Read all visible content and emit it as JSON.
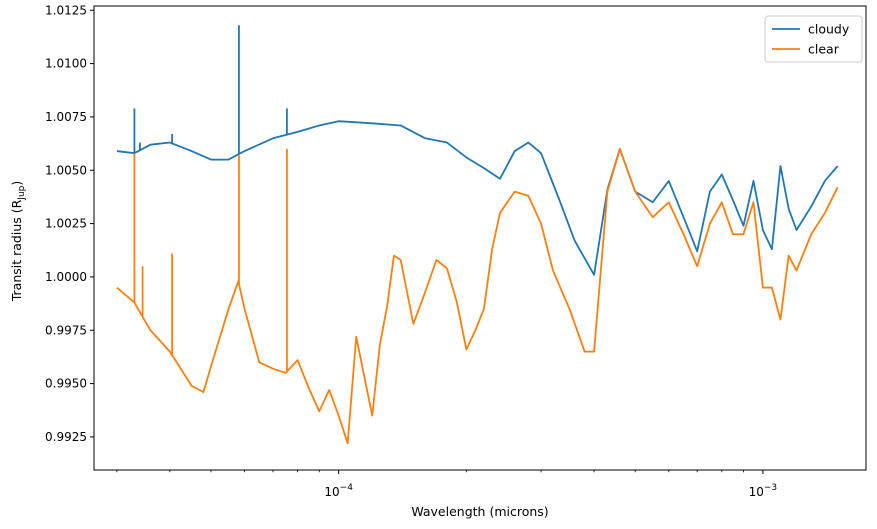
{
  "chart_data": {
    "type": "line",
    "title": "",
    "xlabel": "Wavelength (microns)",
    "ylabel": "Transit radius (R",
    "ylabel_sub": "Jup",
    "ylabel_close": ")",
    "xscale": "log",
    "xlim": [
      2.65e-05,
      0.00175
    ],
    "ylim": [
      0.99095,
      1.0127
    ],
    "x_ticks": [
      {
        "value": 0.0001,
        "mantissa": "10",
        "exp": "−4"
      },
      {
        "value": 0.001,
        "mantissa": "10",
        "exp": "−3"
      }
    ],
    "y_ticks": [
      {
        "value": 0.9925,
        "label": "0.9925"
      },
      {
        "value": 0.995,
        "label": "0.9950"
      },
      {
        "value": 0.9975,
        "label": "0.9975"
      },
      {
        "value": 1.0,
        "label": "1.0000"
      },
      {
        "value": 1.0025,
        "label": "1.0025"
      },
      {
        "value": 1.005,
        "label": "1.0050"
      },
      {
        "value": 1.0075,
        "label": "1.0075"
      },
      {
        "value": 1.01,
        "label": "1.0100"
      },
      {
        "value": 1.0125,
        "label": "1.0125"
      }
    ],
    "grid": false,
    "legend_position": "top-right",
    "series": [
      {
        "name": "cloudy",
        "color": "#1f77b4",
        "x": [
          3e-05,
          3.3e-05,
          3.6e-05,
          4e-05,
          4.5e-05,
          5e-05,
          5.5e-05,
          6e-05,
          7e-05,
          8e-05,
          9e-05,
          0.0001,
          0.00012,
          0.00014,
          0.00016,
          0.00018,
          0.0002,
          0.00022,
          0.00024,
          0.00026,
          0.00028,
          0.0003,
          0.00033,
          0.00036,
          0.0004,
          0.00043,
          0.00046,
          0.0005,
          0.00055,
          0.0006,
          0.00065,
          0.0007,
          0.00075,
          0.0008,
          0.00085,
          0.0009,
          0.00095,
          0.001,
          0.00105,
          0.0011,
          0.00115,
          0.0012,
          0.0013,
          0.0014,
          0.0015
        ],
        "y": [
          1.0059,
          1.0058,
          1.0062,
          1.0063,
          1.0059,
          1.0055,
          1.0055,
          1.0059,
          1.0065,
          1.0068,
          1.0071,
          1.0073,
          1.0072,
          1.0071,
          1.0065,
          1.0063,
          1.0056,
          1.0051,
          1.0046,
          1.0059,
          1.0063,
          1.0058,
          1.0037,
          1.0017,
          1.0001,
          1.0041,
          1.006,
          1.004,
          1.0035,
          1.0045,
          1.0028,
          1.0012,
          1.004,
          1.0048,
          1.0036,
          1.0024,
          1.0045,
          1.0022,
          1.0013,
          1.0052,
          1.0032,
          1.0022,
          1.0033,
          1.0045,
          1.0052
        ]
      },
      {
        "name": "clear",
        "color": "#ff7f0e",
        "x": [
          3e-05,
          3.3e-05,
          3.6e-05,
          4e-05,
          4.5e-05,
          4.8e-05,
          5e-05,
          5.5e-05,
          5.8e-05,
          6e-05,
          6.5e-05,
          7e-05,
          7.5e-05,
          8e-05,
          8.5e-05,
          9e-05,
          9.5e-05,
          0.0001,
          0.000105,
          0.00011,
          0.000115,
          0.00012,
          0.000125,
          0.00013,
          0.000135,
          0.00014,
          0.00015,
          0.00016,
          0.00017,
          0.00018,
          0.00019,
          0.0002,
          0.00021,
          0.00022,
          0.00023,
          0.00024,
          0.00026,
          0.00028,
          0.0003,
          0.00032,
          0.00035,
          0.00038,
          0.0004,
          0.00043,
          0.00046,
          0.0005,
          0.00055,
          0.0006,
          0.00065,
          0.0007,
          0.00075,
          0.0008,
          0.00085,
          0.0009,
          0.00095,
          0.001,
          0.00105,
          0.0011,
          0.00115,
          0.0012,
          0.0013,
          0.0014,
          0.0015
        ],
        "y": [
          0.9995,
          0.9988,
          0.9975,
          0.9965,
          0.9949,
          0.9946,
          0.9958,
          0.9985,
          0.9998,
          0.9985,
          0.996,
          0.9957,
          0.9955,
          0.9961,
          0.9948,
          0.9937,
          0.9947,
          0.9935,
          0.9922,
          0.9972,
          0.9953,
          0.9935,
          0.9968,
          0.9986,
          1.001,
          1.0008,
          0.9978,
          0.9993,
          1.0008,
          1.0004,
          0.9988,
          0.9966,
          0.9975,
          0.9985,
          1.0013,
          1.003,
          1.004,
          1.0038,
          1.0025,
          1.0003,
          0.9985,
          0.9965,
          0.9965,
          1.004,
          1.006,
          1.004,
          1.0028,
          1.0035,
          1.002,
          1.0005,
          1.0025,
          1.0035,
          1.002,
          1.002,
          1.0035,
          0.9995,
          0.9995,
          0.998,
          1.001,
          1.0003,
          1.002,
          1.003,
          1.0042
        ]
      }
    ],
    "spikes": [
      {
        "series": "cloudy",
        "x": 3.3e-05,
        "y": 1.0079
      },
      {
        "series": "cloudy",
        "x": 3.4e-05,
        "y": 1.0063
      },
      {
        "series": "cloudy",
        "x": 4.05e-05,
        "y": 1.0067
      },
      {
        "series": "cloudy",
        "x": 5.82e-05,
        "y": 1.0118
      },
      {
        "series": "cloudy",
        "x": 7.55e-05,
        "y": 1.0079
      },
      {
        "series": "clear",
        "x": 3.3e-05,
        "y": 1.0058
      },
      {
        "series": "clear",
        "x": 3.45e-05,
        "y": 1.0005
      },
      {
        "series": "clear",
        "x": 4.05e-05,
        "y": 1.0011
      },
      {
        "series": "clear",
        "x": 5.82e-05,
        "y": 1.0057
      },
      {
        "series": "clear",
        "x": 7.55e-05,
        "y": 1.006
      }
    ]
  }
}
